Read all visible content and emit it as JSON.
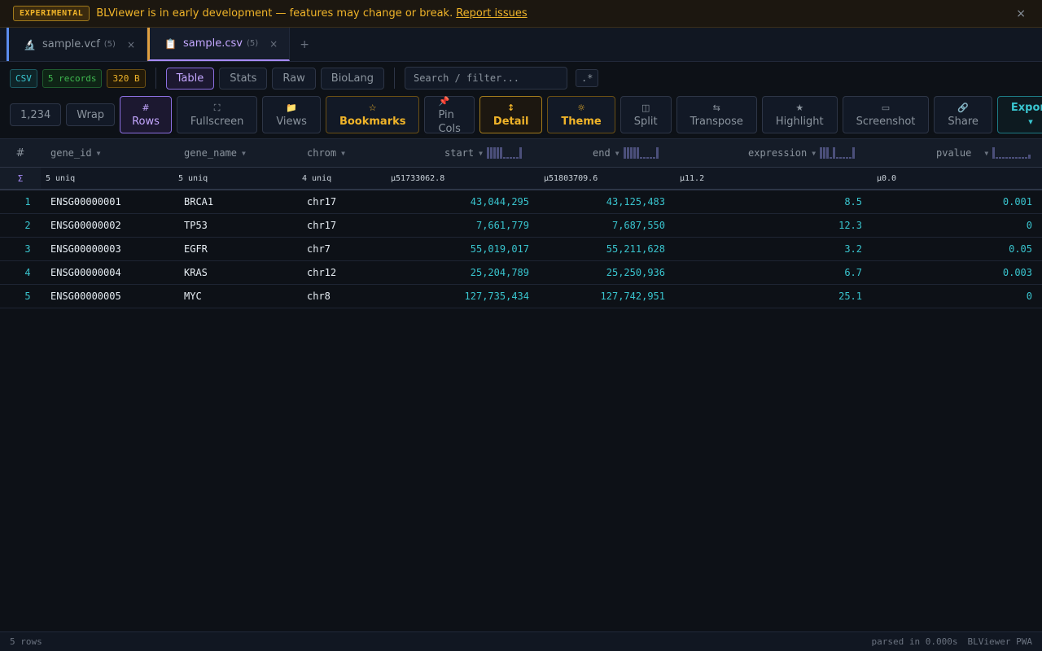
{
  "banner": {
    "badge": "EXPERIMENTAL",
    "text": "BLViewer is in early development — features may change or break.",
    "link": "Report issues",
    "close": "×"
  },
  "tabs": [
    {
      "name": "sample.vcf",
      "count": "(5)",
      "close": "×",
      "icon": "microscope-icon"
    },
    {
      "name": "sample.csv",
      "count": "(5)",
      "close": "×",
      "icon": "clipboard-icon"
    }
  ],
  "tab_add": "+",
  "info": {
    "format": "CSV",
    "records": "5 records",
    "size": "320 B"
  },
  "views": [
    "Table",
    "Stats",
    "Raw",
    "BioLang"
  ],
  "search": {
    "placeholder": "Search / filter...",
    "regex": ".*"
  },
  "toolbar": {
    "number_format": "1,234",
    "wrap": "Wrap",
    "rows": {
      "icon": "#",
      "label": "Rows"
    },
    "fullscreen": {
      "icon": "⛶",
      "label": "Fullscreen"
    },
    "views": {
      "icon": "📁",
      "label": "Views"
    },
    "bookmarks": {
      "icon": "☆",
      "label": "Bookmarks"
    },
    "pin": {
      "icon": "📌",
      "label1": "Pin",
      "label2": "Cols"
    },
    "detail": {
      "icon": "↕",
      "label": "Detail"
    },
    "theme": {
      "icon": "☼",
      "label": "Theme"
    },
    "split": {
      "icon": "◫",
      "label": "Split"
    },
    "transpose": {
      "icon": "⇆",
      "label": "Transpose"
    },
    "highlight": {
      "icon": "★",
      "label": "Highlight"
    },
    "screenshot": {
      "icon": "▭",
      "label": "Screenshot"
    },
    "share": {
      "icon": "🔗",
      "label": "Share"
    },
    "export": {
      "label": "Export",
      "caret": "▾"
    }
  },
  "table": {
    "rownum_header": "#",
    "sigma": "Σ",
    "columns": [
      "gene_id",
      "gene_name",
      "chrom",
      "start",
      "end",
      "expression",
      "pvalue"
    ],
    "sort_glyph": "▼",
    "summary": [
      "5 uniq",
      "5 uniq",
      "4 uniq",
      "μ51733062.8",
      "μ51803709.6",
      "μ11.2",
      "μ0.0"
    ],
    "rows": [
      [
        "1",
        "ENSG00000001",
        "BRCA1",
        "chr17",
        "43,044,295",
        "43,125,483",
        "8.5",
        "0.001"
      ],
      [
        "2",
        "ENSG00000002",
        "TP53",
        "chr17",
        "7,661,779",
        "7,687,550",
        "12.3",
        "0"
      ],
      [
        "3",
        "ENSG00000003",
        "EGFR",
        "chr7",
        "55,019,017",
        "55,211,628",
        "3.2",
        "0.05"
      ],
      [
        "4",
        "ENSG00000004",
        "KRAS",
        "chr12",
        "25,204,789",
        "25,250,936",
        "6.7",
        "0.003"
      ],
      [
        "5",
        "ENSG00000005",
        "MYC",
        "chr8",
        "127,735,434",
        "127,742,951",
        "25.1",
        "0"
      ]
    ]
  },
  "status": {
    "rows": "5 rows",
    "parsed": "parsed in 0.000s",
    "app": "BLViewer PWA"
  }
}
